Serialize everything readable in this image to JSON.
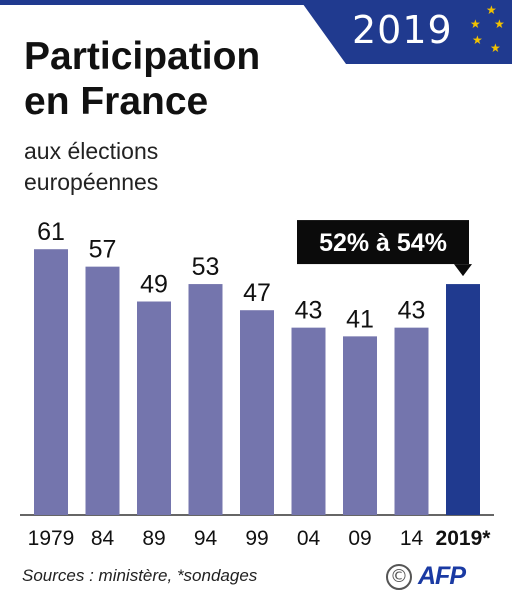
{
  "header": {
    "badge_year": "2019",
    "title": "Participation en France",
    "subtitle": "aux élections européennes"
  },
  "footer": {
    "source": "Sources : ministère, *sondages",
    "copyright_symbol": "©",
    "logo_text": "AFP"
  },
  "colors": {
    "bar": "#7475ad",
    "bar_highlight": "#203a8f",
    "callout_bg": "#0b0b0b",
    "callout_text": "#ffffff",
    "brand": "#203a8f",
    "stars": "#f2c200"
  },
  "chart_data": {
    "type": "bar",
    "title": "Participation en France",
    "subtitle": "aux élections européennes",
    "categories": [
      "1979",
      "84",
      "89",
      "94",
      "99",
      "04",
      "09",
      "14",
      "2019*"
    ],
    "values": [
      61,
      57,
      49,
      53,
      47,
      43,
      41,
      43,
      53
    ],
    "value_labels": [
      "61",
      "57",
      "49",
      "53",
      "47",
      "43",
      "41",
      "43",
      ""
    ],
    "highlight_index": 8,
    "highlight_annotation": "52% à 54%",
    "ylim": [
      0,
      70
    ],
    "grid": false,
    "legend": "none"
  }
}
